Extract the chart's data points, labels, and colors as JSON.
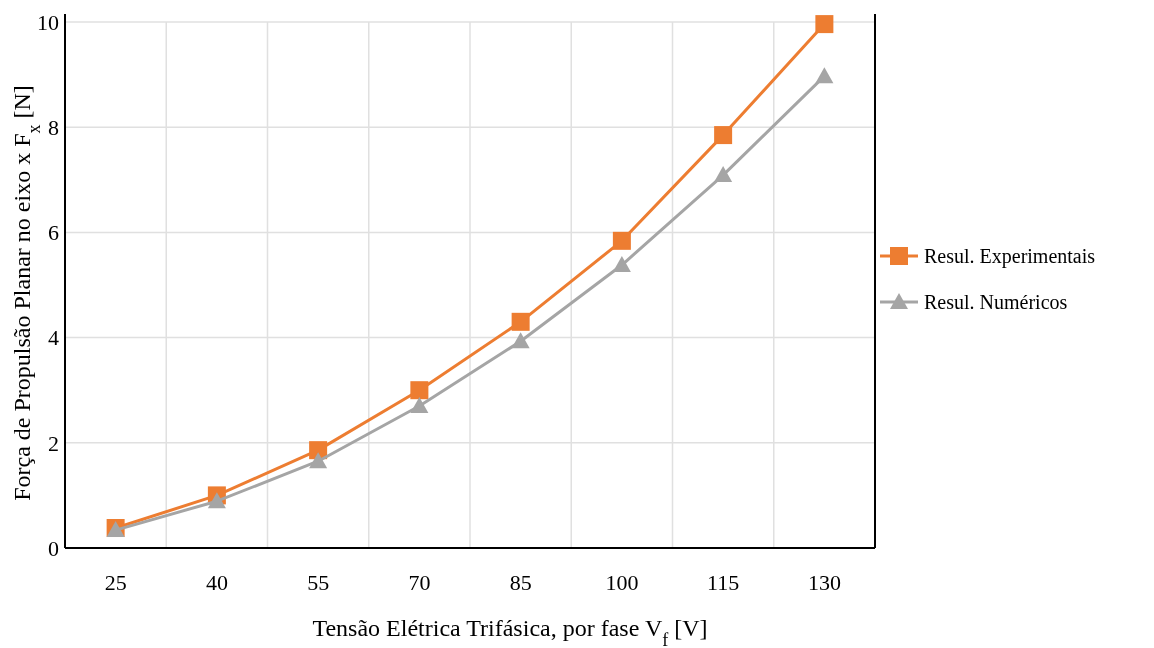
{
  "chart_data": {
    "type": "line",
    "xlabel": "Tensão Elétrica Trifásica, por fase V$_{f}$  [V]",
    "ylabel": "Força de Propulsão Planar no eixo x F$_{x}$ [N]",
    "categories": [
      "25",
      "40",
      "55",
      "70",
      "85",
      "100",
      "115",
      "130"
    ],
    "series": [
      {
        "name": "Resul. Experimentais",
        "color": "#ed7d31",
        "marker": "square",
        "values": [
          0.38,
          1.0,
          1.86,
          3.0,
          4.3,
          5.84,
          7.85,
          9.96
        ]
      },
      {
        "name": "Resul. Numéricos",
        "color": "#a5a5a5",
        "marker": "triangle",
        "values": [
          0.34,
          0.89,
          1.65,
          2.7,
          3.93,
          5.38,
          7.09,
          8.97
        ]
      }
    ],
    "ylim": [
      0,
      10
    ],
    "yticks": [
      0,
      2,
      4,
      6,
      8,
      10
    ],
    "grid": true,
    "legend": "right"
  }
}
